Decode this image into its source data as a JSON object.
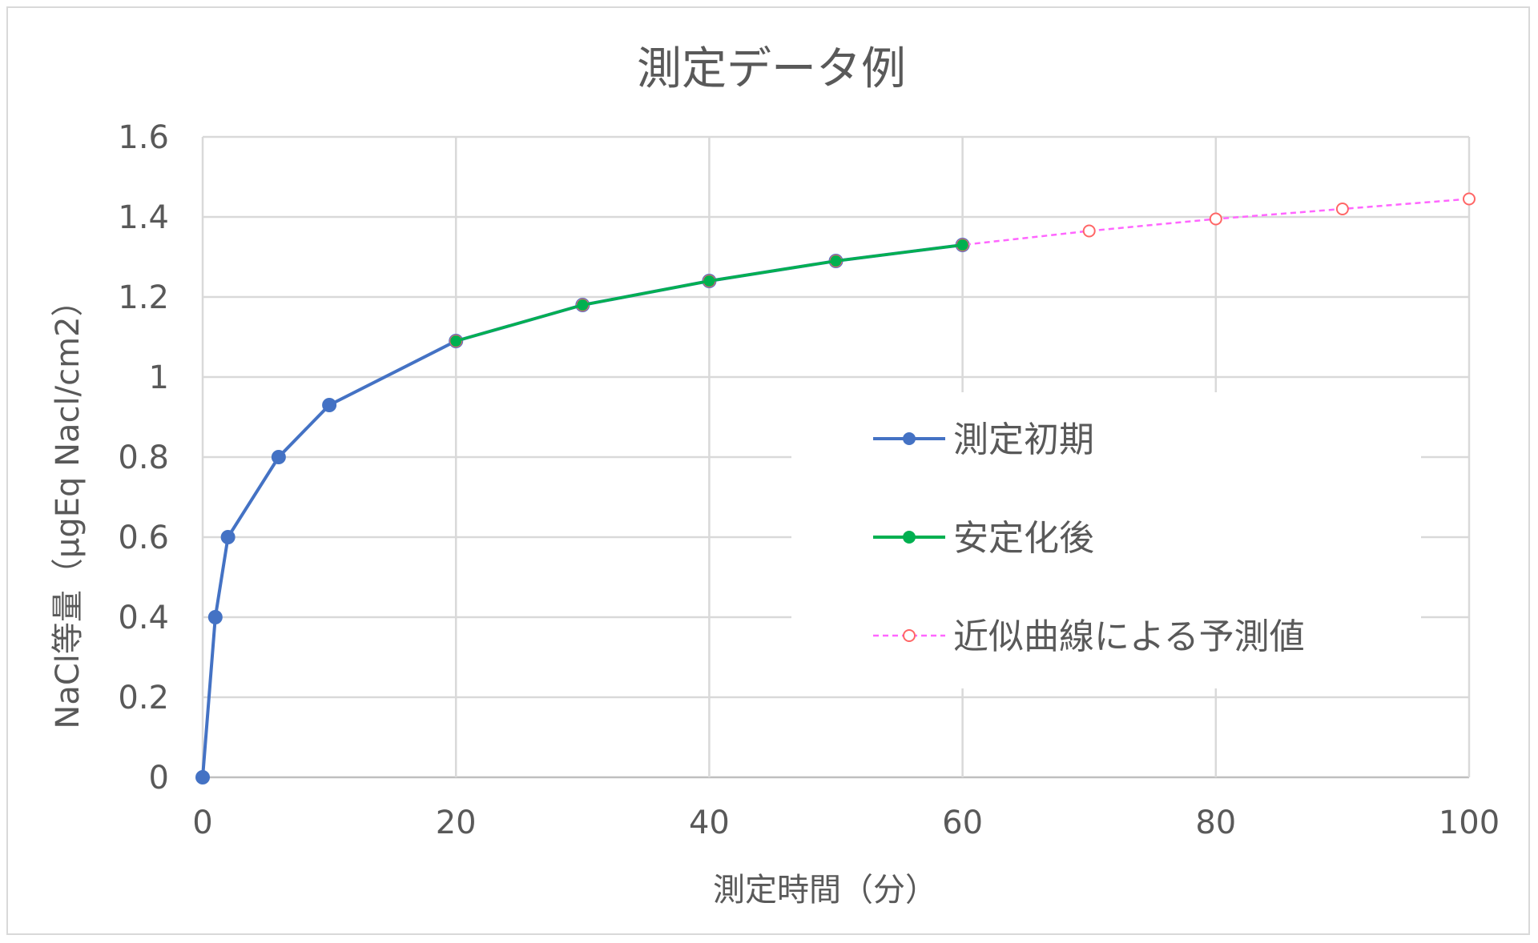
{
  "chart_data": {
    "type": "line",
    "title": "測定データ例",
    "xlabel": "測定時間（分）",
    "ylabel": "NaCl等量（µgEq Nacl/cm2）",
    "xlim": [
      0,
      100
    ],
    "ylim": [
      0,
      1.6
    ],
    "x_ticks": [
      "0",
      "20",
      "40",
      "60",
      "80",
      "100"
    ],
    "y_ticks": [
      "0",
      "0.2",
      "0.4",
      "0.6",
      "0.8",
      "1",
      "1.2",
      "1.4",
      "1.6"
    ],
    "grid": true,
    "legend_position": "right-center",
    "series": [
      {
        "name": "測定初期",
        "color": "#4472c4",
        "style": "solid",
        "marker": "filled-circle",
        "x": [
          0,
          1,
          2,
          6,
          10,
          20,
          30,
          40,
          50,
          60
        ],
        "y": [
          0,
          0.4,
          0.6,
          0.8,
          0.93,
          1.09,
          1.18,
          1.24,
          1.29,
          1.33
        ]
      },
      {
        "name": "安定化後",
        "color": "#00b050",
        "style": "solid",
        "marker": "filled-circle",
        "x": [
          20,
          30,
          40,
          50,
          60
        ],
        "y": [
          1.09,
          1.18,
          1.24,
          1.29,
          1.33
        ]
      },
      {
        "name": "近似曲線による予測値",
        "color": "#ff66ff",
        "marker_color": "#ff6666",
        "style": "dashed",
        "marker": "open-circle",
        "x": [
          20,
          30,
          40,
          50,
          60,
          70,
          80,
          90,
          100
        ],
        "y": [
          1.09,
          1.18,
          1.24,
          1.29,
          1.33,
          1.365,
          1.395,
          1.42,
          1.445
        ]
      }
    ]
  }
}
